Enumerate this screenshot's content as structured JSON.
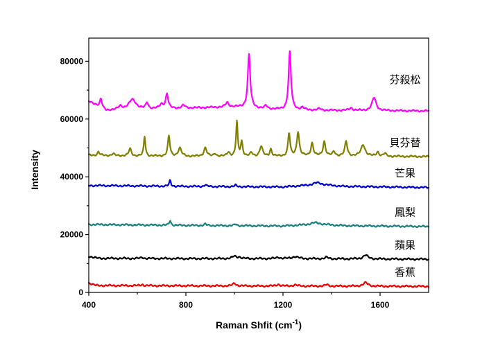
{
  "chart_data": {
    "type": "line",
    "title": "",
    "xlabel": "Raman Shfit (cm",
    "xlabel_sup": "-1",
    "xlabel_suffix": ")",
    "ylabel": "Intensity",
    "xlim": [
      400,
      1800
    ],
    "ylim": [
      0,
      88000
    ],
    "xticks": [
      400,
      800,
      1200,
      1600
    ],
    "yticks": [
      0,
      20000,
      40000,
      60000,
      80000
    ],
    "xtick_labels": [
      "400",
      "800",
      "1200",
      "1600"
    ],
    "ytick_labels": [
      "0",
      "20000",
      "40000",
      "60000",
      "80000"
    ],
    "grid": false,
    "legend": "labels placed at right of each trace",
    "series": [
      {
        "name": "芬殺松",
        "color": "#ff00ff",
        "baseline": [
          [
            400,
            66000
          ],
          [
            430,
            65000
          ],
          [
            470,
            63000
          ],
          [
            700,
            63500
          ],
          [
            900,
            64000
          ],
          [
            1000,
            64200
          ],
          [
            1200,
            63200
          ],
          [
            1400,
            63000
          ],
          [
            1800,
            62800
          ]
        ],
        "peaks": [
          [
            450,
            3000,
            5
          ],
          [
            530,
            1200,
            10
          ],
          [
            580,
            3500,
            18
          ],
          [
            640,
            2200,
            6
          ],
          [
            700,
            1500,
            10
          ],
          [
            722,
            5000,
            6
          ],
          [
            790,
            1000,
            8
          ],
          [
            970,
            1500,
            8
          ],
          [
            1060,
            18500,
            6
          ],
          [
            1130,
            1000,
            6
          ],
          [
            1228,
            20000,
            6
          ],
          [
            1280,
            800,
            8
          ],
          [
            1350,
            500,
            8
          ],
          [
            1480,
            900,
            8
          ],
          [
            1575,
            4500,
            10
          ]
        ]
      },
      {
        "name": "貝芬替",
        "color": "#808000",
        "baseline": [
          [
            400,
            47500
          ],
          [
            600,
            47200
          ],
          [
            1000,
            47000
          ],
          [
            1400,
            47200
          ],
          [
            1800,
            47000
          ]
        ],
        "peaks": [
          [
            440,
            1200,
            5
          ],
          [
            500,
            600,
            6
          ],
          [
            570,
            2500,
            6
          ],
          [
            630,
            6800,
            4
          ],
          [
            730,
            7000,
            5
          ],
          [
            775,
            2800,
            8
          ],
          [
            880,
            3000,
            7
          ],
          [
            920,
            1000,
            6
          ],
          [
            975,
            1500,
            7
          ],
          [
            1010,
            12000,
            4
          ],
          [
            1030,
            5000,
            5
          ],
          [
            1070,
            1200,
            6
          ],
          [
            1110,
            3500,
            7
          ],
          [
            1150,
            2500,
            5
          ],
          [
            1225,
            8000,
            5
          ],
          [
            1262,
            8500,
            6
          ],
          [
            1320,
            4500,
            6
          ],
          [
            1370,
            5000,
            6
          ],
          [
            1410,
            1500,
            6
          ],
          [
            1460,
            5000,
            6
          ],
          [
            1530,
            4000,
            10
          ],
          [
            1590,
            1500,
            6
          ],
          [
            1620,
            1000,
            6
          ]
        ]
      },
      {
        "name": "芒果",
        "color": "#0000cc",
        "baseline": [
          [
            400,
            37000
          ],
          [
            800,
            36700
          ],
          [
            1200,
            36500
          ],
          [
            1350,
            37300
          ],
          [
            1450,
            36700
          ],
          [
            1800,
            36300
          ]
        ],
        "peaks": [
          [
            735,
            2000,
            4
          ],
          [
            880,
            600,
            5
          ],
          [
            1005,
            500,
            5
          ],
          [
            1340,
            700,
            20
          ]
        ]
      },
      {
        "name": "鳳梨",
        "color": "#1a8080",
        "baseline": [
          [
            400,
            23500
          ],
          [
            800,
            23200
          ],
          [
            1200,
            23000
          ],
          [
            1350,
            23600
          ],
          [
            1450,
            23100
          ],
          [
            1800,
            22800
          ]
        ],
        "peaks": [
          [
            735,
            1700,
            4
          ],
          [
            880,
            500,
            5
          ],
          [
            1005,
            500,
            5
          ],
          [
            1330,
            600,
            20
          ]
        ]
      },
      {
        "name": "蘋果",
        "color": "#000000",
        "baseline": [
          [
            400,
            12500
          ],
          [
            440,
            11800
          ],
          [
            800,
            11700
          ],
          [
            1200,
            11700
          ],
          [
            1800,
            11500
          ]
        ],
        "peaks": [
          [
            620,
            400,
            6
          ],
          [
            1000,
            800,
            10
          ],
          [
            1020,
            500,
            8
          ],
          [
            1180,
            500,
            8
          ],
          [
            1250,
            700,
            15
          ],
          [
            1380,
            500,
            8
          ],
          [
            1540,
            1300,
            12
          ]
        ]
      },
      {
        "name": "香蕉",
        "color": "#ee0000",
        "baseline": [
          [
            400,
            3300
          ],
          [
            430,
            2400
          ],
          [
            800,
            2300
          ],
          [
            1200,
            2200
          ],
          [
            1800,
            2100
          ]
        ],
        "peaks": [
          [
            620,
            400,
            6
          ],
          [
            1000,
            900,
            8
          ],
          [
            1180,
            600,
            8
          ],
          [
            1250,
            400,
            10
          ],
          [
            1380,
            500,
            8
          ],
          [
            1540,
            1200,
            12
          ]
        ]
      }
    ]
  }
}
